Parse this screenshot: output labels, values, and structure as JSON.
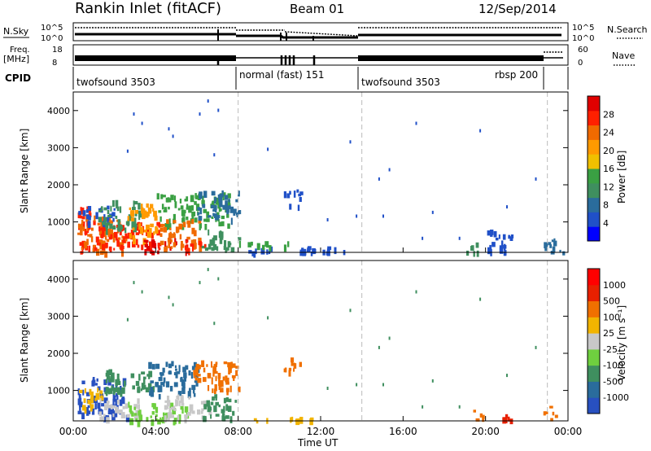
{
  "header": {
    "station": "Rankin Inlet (fitACF)",
    "beam": "Beam 01",
    "date": "12/Sep/2014"
  },
  "upper_panels": {
    "nsky_label": "N.Sky",
    "nsky_ticks": [
      "10^5",
      "10^0"
    ],
    "nsearch_label": "N.Search",
    "nsearch_ticks": [
      "10^5",
      "10^0"
    ],
    "freq_label_1": "Freq.",
    "freq_label_2": "[MHz]",
    "freq_ticks": [
      "18",
      "8"
    ],
    "nave_label": "Nave",
    "nave_ticks": [
      "60",
      "0"
    ],
    "cpid_label": "CPID",
    "cpid_segments": [
      {
        "label": "twofsound 3503",
        "start_h": 0,
        "end_h": 8
      },
      {
        "label": "normal (fast)  151",
        "start_h": 8,
        "end_h": 14
      },
      {
        "label": "twofsound 3503",
        "start_h": 14,
        "end_h": 23
      },
      {
        "label": "rbsp 200",
        "start_h": 20.5,
        "end_h": 23
      }
    ]
  },
  "axes": {
    "ylabel": "Slant Range [km]",
    "yticks": [
      "4000",
      "3000",
      "2000",
      "1000"
    ],
    "xlabel": "Time UT",
    "xticks": [
      "00:00",
      "04:00",
      "08:00",
      "12:00",
      "16:00",
      "20:00",
      "00:00"
    ]
  },
  "colorbars": {
    "power": {
      "label": "Power [dB]",
      "ticks": [
        "28",
        "24",
        "20",
        "16",
        "12",
        "8",
        "4"
      ],
      "colors": [
        "#0000ff",
        "#2050c8",
        "#2a6c9c",
        "#3f8f5f",
        "#3aa043",
        "#f0c000",
        "#ff9a00",
        "#f06a00",
        "#ff2000",
        "#e00000"
      ]
    },
    "velocity": {
      "label": "Velocity [m s⁻¹]",
      "ticks": [
        "1000",
        "500",
        "100",
        "25",
        "-25",
        "-100",
        "-500",
        "-1000"
      ],
      "colors": [
        "#2850c0",
        "#2a6c9c",
        "#3f8f5f",
        "#6fcf3f",
        "#c8c8c8",
        "#f2b400",
        "#f07000",
        "#e82000",
        "#ff0000"
      ]
    }
  },
  "chart_data": {
    "type": "heatmap",
    "title": "Rankin Inlet (fitACF)",
    "x_range_hours": [
      0,
      24
    ],
    "y_range_km": [
      180,
      4500
    ],
    "grid": false,
    "mode_boundaries_hours": [
      8,
      14,
      23
    ],
    "power_regions": [
      {
        "t0": 0.2,
        "t1": 1.0,
        "r0": 200,
        "r1": 1450,
        "color": "#ff2000"
      },
      {
        "t0": 0.2,
        "t1": 2.6,
        "r0": 200,
        "r1": 1200,
        "color": "#f06a00"
      },
      {
        "t0": 1.0,
        "t1": 4.2,
        "r0": 300,
        "r1": 1000,
        "color": "#ff2000"
      },
      {
        "t0": 0.2,
        "t1": 2.0,
        "r0": 1000,
        "r1": 1450,
        "color": "#2050c8"
      },
      {
        "t0": 1.2,
        "t1": 3.2,
        "r0": 800,
        "r1": 1600,
        "color": "#3f8f5f"
      },
      {
        "t0": 2.6,
        "t1": 4.0,
        "r0": 500,
        "r1": 1500,
        "color": "#ff9a00"
      },
      {
        "t0": 3.4,
        "t1": 5.5,
        "r0": 200,
        "r1": 600,
        "color": "#e00000"
      },
      {
        "t0": 4.0,
        "t1": 7.5,
        "r0": 900,
        "r1": 1800,
        "color": "#3aa043"
      },
      {
        "t0": 4.2,
        "t1": 6.2,
        "r0": 300,
        "r1": 1100,
        "color": "#f06a00"
      },
      {
        "t0": 5.4,
        "t1": 6.4,
        "r0": 200,
        "r1": 500,
        "color": "#ff2000"
      },
      {
        "t0": 6.0,
        "t1": 8.0,
        "r0": 1100,
        "r1": 1850,
        "color": "#2a6c9c"
      },
      {
        "t0": 6.2,
        "t1": 8.0,
        "r0": 300,
        "r1": 800,
        "color": "#3f8f5f"
      },
      {
        "t0": 8.0,
        "t1": 14.0,
        "r0": 200,
        "r1": 350,
        "color": "#2050c8"
      },
      {
        "t0": 8.0,
        "t1": 10.5,
        "r0": 350,
        "r1": 500,
        "color": "#3aa043"
      },
      {
        "t0": 10.2,
        "t1": 11.0,
        "r0": 1450,
        "r1": 1900,
        "color": "#2050c8"
      },
      {
        "t0": 19.0,
        "t1": 19.6,
        "r0": 200,
        "r1": 500,
        "color": "#3f8f5f"
      },
      {
        "t0": 20.0,
        "t1": 21.3,
        "r0": 200,
        "r1": 800,
        "color": "#2050c8"
      },
      {
        "t0": 22.8,
        "t1": 23.8,
        "r0": 200,
        "r1": 600,
        "color": "#2a6c9c"
      }
    ],
    "velocity_regions": [
      {
        "t0": 0.2,
        "t1": 2.6,
        "r0": 300,
        "r1": 1400,
        "color": "#2850c0"
      },
      {
        "t0": 0.2,
        "t1": 1.4,
        "r0": 500,
        "r1": 1100,
        "color": "#f2b400"
      },
      {
        "t0": 1.2,
        "t1": 3.2,
        "r0": 250,
        "r1": 800,
        "color": "#c8c8c8"
      },
      {
        "t0": 1.5,
        "t1": 4.0,
        "r0": 900,
        "r1": 1600,
        "color": "#3f8f5f"
      },
      {
        "t0": 2.6,
        "t1": 5.5,
        "r0": 200,
        "r1": 700,
        "color": "#6fcf3f"
      },
      {
        "t0": 3.6,
        "t1": 6.0,
        "r0": 900,
        "r1": 1800,
        "color": "#2a6c9c"
      },
      {
        "t0": 4.4,
        "t1": 6.6,
        "r0": 250,
        "r1": 900,
        "color": "#c8c8c8"
      },
      {
        "t0": 5.8,
        "t1": 8.0,
        "r0": 1000,
        "r1": 1850,
        "color": "#f07000"
      },
      {
        "t0": 6.2,
        "t1": 8.0,
        "r0": 300,
        "r1": 900,
        "color": "#3f8f5f"
      },
      {
        "t0": 8.0,
        "t1": 12.5,
        "r0": 200,
        "r1": 300,
        "color": "#f2b400"
      },
      {
        "t0": 10.2,
        "t1": 11.0,
        "r0": 1450,
        "r1": 1900,
        "color": "#f07000"
      },
      {
        "t0": 19.4,
        "t1": 19.9,
        "r0": 200,
        "r1": 500,
        "color": "#f07000"
      },
      {
        "t0": 20.8,
        "t1": 21.2,
        "r0": 200,
        "r1": 500,
        "color": "#e82000"
      },
      {
        "t0": 22.8,
        "t1": 23.4,
        "r0": 250,
        "r1": 600,
        "color": "#f07000"
      }
    ],
    "scatter_points": [
      [
        2.9,
        3950
      ],
      [
        3.3,
        3700
      ],
      [
        4.6,
        3550
      ],
      [
        6.1,
        3950
      ],
      [
        6.5,
        4300
      ],
      [
        7.0,
        4050
      ],
      [
        2.6,
        2950
      ],
      [
        4.8,
        3350
      ],
      [
        6.8,
        2850
      ],
      [
        9.4,
        3000
      ],
      [
        13.4,
        3200
      ],
      [
        15.3,
        2450
      ],
      [
        14.8,
        2200
      ],
      [
        16.6,
        3700
      ],
      [
        19.7,
        3500
      ],
      [
        22.4,
        2200
      ],
      [
        21.0,
        1450
      ],
      [
        16.9,
        600
      ],
      [
        15.0,
        1200
      ],
      [
        18.7,
        600
      ],
      [
        12.3,
        1100
      ],
      [
        13.7,
        1200
      ],
      [
        17.4,
        1300
      ]
    ]
  }
}
